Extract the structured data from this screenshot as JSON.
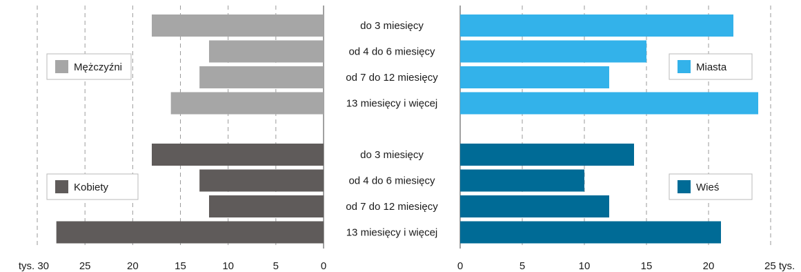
{
  "chart_data": {
    "type": "bar",
    "categories": [
      "do 3 miesięcy",
      "od 4 do 6 miesięcy",
      "od 7 do 12 miesięcy",
      "13 miesięcy i więcej"
    ],
    "panels": [
      {
        "id": "left",
        "direction": "leftward",
        "xlim": [
          0,
          30
        ],
        "ticks": [
          0,
          5,
          10,
          15,
          20,
          25,
          30
        ],
        "tick_labels": [
          "0",
          "5",
          "10",
          "15",
          "20",
          "25",
          "tys. 30"
        ],
        "series": [
          {
            "name": "Mężczyźni",
            "color": "#a6a6a6",
            "values": [
              18,
              12,
              13,
              16
            ]
          },
          {
            "name": "Kobiety",
            "color": "#5f5b5a",
            "values": [
              18,
              13,
              12,
              28
            ]
          }
        ]
      },
      {
        "id": "right",
        "direction": "rightward",
        "xlim": [
          0,
          25
        ],
        "ticks": [
          0,
          5,
          10,
          15,
          20,
          25
        ],
        "tick_labels": [
          "0",
          "5",
          "10",
          "15",
          "20",
          "25 tys."
        ],
        "series": [
          {
            "name": "Miasta",
            "color": "#33b2ea",
            "values": [
              22,
              15,
              12,
              24
            ]
          },
          {
            "name": "Wieś",
            "color": "#006b96",
            "values": [
              14,
              10,
              12,
              21
            ]
          }
        ]
      }
    ],
    "grid": true,
    "grid_style": "dashed vertical",
    "legend_placement": "inside panels"
  }
}
